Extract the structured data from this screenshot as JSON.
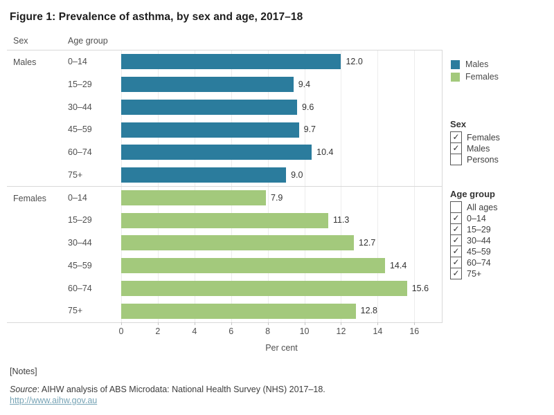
{
  "title": "Figure 1: Prevalence of asthma, by sex and age, 2017–18",
  "columns": {
    "sex": "Sex",
    "age_group": "Age group"
  },
  "chart_data": {
    "type": "bar",
    "orientation": "horizontal",
    "title": "Figure 1: Prevalence of asthma, by sex and age, 2017–18",
    "xlabel": "Per cent",
    "ylabel": "",
    "xlim": [
      0,
      17.5
    ],
    "x_ticks": [
      0,
      2,
      4,
      6,
      8,
      10,
      12,
      14,
      16
    ],
    "grid": true,
    "legend_position": "right",
    "categories": [
      "0–14",
      "15–29",
      "30–44",
      "45–59",
      "60–74",
      "75+"
    ],
    "groups": [
      {
        "sex": "Males",
        "color": "#2b7c9d",
        "categories": [
          "0–14",
          "15–29",
          "30–44",
          "45–59",
          "60–74",
          "75+"
        ],
        "values": [
          12.0,
          9.4,
          9.6,
          9.7,
          10.4,
          9.0
        ]
      },
      {
        "sex": "Females",
        "color": "#a3c97c",
        "categories": [
          "0–14",
          "15–29",
          "30–44",
          "45–59",
          "60–74",
          "75+"
        ],
        "values": [
          7.9,
          11.3,
          12.7,
          14.4,
          15.6,
          12.8
        ]
      }
    ]
  },
  "legend": {
    "items": [
      {
        "label": "Males",
        "color": "#2b7c9d"
      },
      {
        "label": "Females",
        "color": "#a3c97c"
      }
    ]
  },
  "filters": [
    {
      "title": "Sex",
      "options": [
        {
          "label": "Females",
          "checked": true
        },
        {
          "label": "Males",
          "checked": true
        },
        {
          "label": "Persons",
          "checked": false
        }
      ]
    },
    {
      "title": "Age group",
      "options": [
        {
          "label": "All ages",
          "checked": false
        },
        {
          "label": "0–14",
          "checked": true
        },
        {
          "label": "15–29",
          "checked": true
        },
        {
          "label": "30–44",
          "checked": true
        },
        {
          "label": "45–59",
          "checked": true
        },
        {
          "label": "60–74",
          "checked": true
        },
        {
          "label": "75+",
          "checked": true
        }
      ]
    }
  ],
  "footer": {
    "notes": "[Notes]",
    "source_label": "Source",
    "source_text": ": AIHW analysis of ABS Microdata: National Health Survey (NHS) 2017–18.",
    "link": "http://www.aihw.gov.au"
  },
  "check_glyph": "✓"
}
